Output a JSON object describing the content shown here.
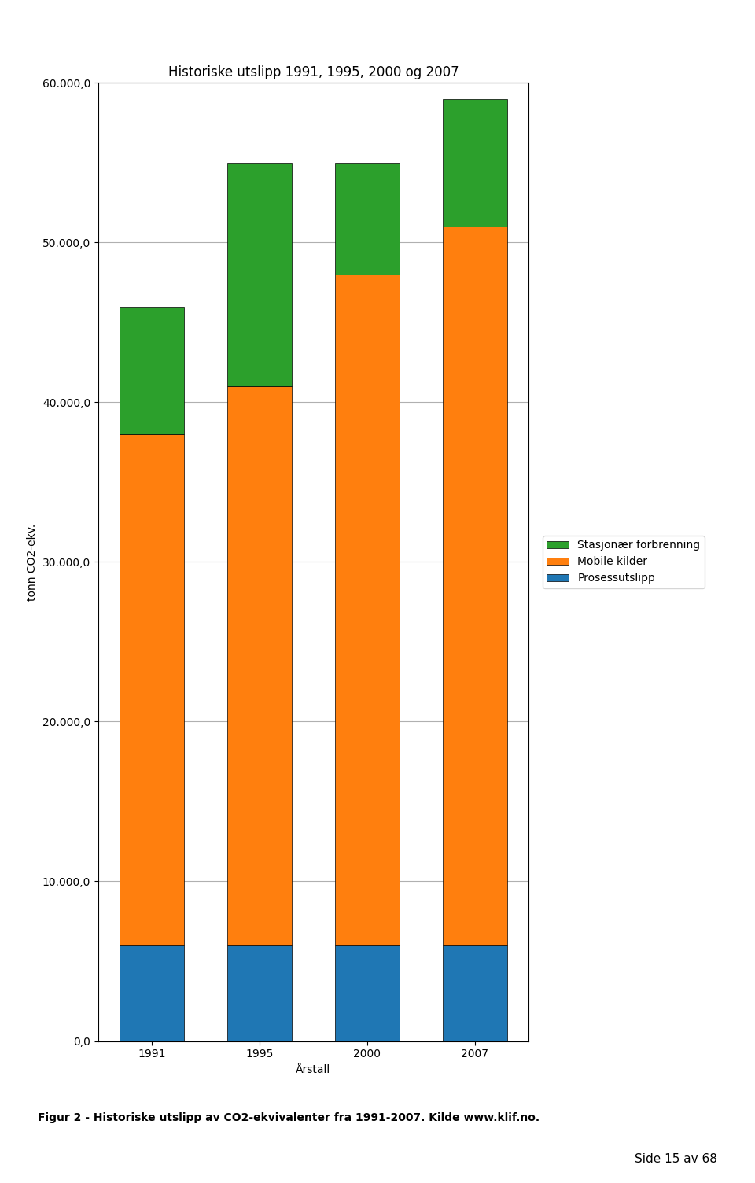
{
  "chart_data": {
    "type": "bar",
    "stacked": true,
    "title": "Historiske utslipp 1991, 1995, 2000 og 2007",
    "xlabel": "Årstall",
    "ylabel": "tonn CO2-ekv.",
    "categories": [
      "1991",
      "1995",
      "2000",
      "2007"
    ],
    "series": [
      {
        "name": "Prosessutslipp",
        "values": [
          6000,
          6000,
          6000,
          6000
        ]
      },
      {
        "name": "Mobile kilder",
        "values": [
          32000,
          35000,
          42000,
          45000
        ]
      },
      {
        "name": "Stasjonær forbrenning",
        "values": [
          8000,
          14000,
          7000,
          8000
        ]
      }
    ],
    "ylim": [
      0,
      60000
    ],
    "yticks": [
      {
        "value": 0,
        "label": "0,0"
      },
      {
        "value": 10000,
        "label": "10.000,0"
      },
      {
        "value": 20000,
        "label": "20.000,0"
      },
      {
        "value": 30000,
        "label": "30.000,0"
      },
      {
        "value": 40000,
        "label": "40.000,0"
      },
      {
        "value": 50000,
        "label": "50.000,0"
      },
      {
        "value": 60000,
        "label": "60.000,0"
      }
    ],
    "grid": true,
    "legend": "right",
    "annotations": [
      "Figur 2 - Historiske utslipp av CO2-ekvivalenter fra 1991-2007. Kilde www.klif.no.",
      "Side 15 av 68"
    ]
  }
}
